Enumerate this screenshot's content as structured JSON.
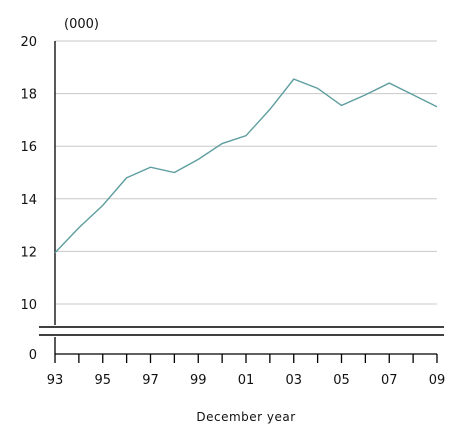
{
  "chart_data": {
    "type": "line",
    "unit_label": "(000)",
    "xlabel": "December year",
    "ylabel": "",
    "x_tick_labels": [
      "93",
      "95",
      "97",
      "99",
      "01",
      "03",
      "05",
      "07",
      "09"
    ],
    "y_tick_labels": [
      "0",
      "10",
      "12",
      "14",
      "16",
      "18",
      "20"
    ],
    "y_break": [
      0,
      10
    ],
    "ylim": [
      10,
      20
    ],
    "grid": true,
    "series_color": "#5f9ea0",
    "series": [
      {
        "x": [
          1993,
          1994,
          1995,
          1996,
          1997,
          1998,
          1999,
          2000,
          2001,
          2002,
          2003,
          2004,
          2005,
          2006,
          2007,
          2008,
          2009
        ],
        "values": [
          11.95,
          12.9,
          13.75,
          14.8,
          15.2,
          15.0,
          15.5,
          16.1,
          16.4,
          17.4,
          18.55,
          18.2,
          17.55,
          17.95,
          18.4,
          17.95,
          17.5
        ]
      }
    ]
  }
}
